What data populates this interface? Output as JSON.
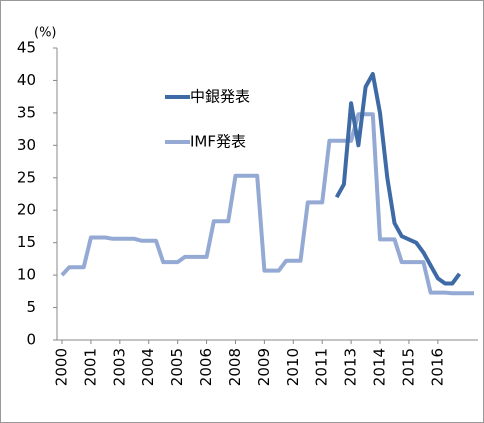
{
  "chart_data": {
    "type": "line",
    "unit_label": "(%)",
    "categories": [
      "2000",
      null,
      null,
      null,
      "2001",
      null,
      null,
      null,
      "2003",
      null,
      null,
      null,
      "2004",
      null,
      null,
      null,
      "2005",
      null,
      null,
      null,
      "2006",
      null,
      null,
      null,
      "2008",
      null,
      null,
      null,
      "2009",
      null,
      null,
      null,
      "2010",
      null,
      null,
      null,
      "2011",
      null,
      null,
      null,
      "2013",
      null,
      null,
      null,
      "2014",
      null,
      null,
      null,
      "2015",
      null,
      null,
      null,
      "2016",
      null,
      null,
      null,
      null,
      null
    ],
    "series": [
      {
        "name": "中銀発表",
        "color": "#3e6aa5",
        "values": [
          null,
          null,
          null,
          null,
          null,
          null,
          null,
          null,
          null,
          null,
          null,
          null,
          null,
          null,
          null,
          null,
          null,
          null,
          null,
          null,
          null,
          null,
          null,
          null,
          null,
          null,
          null,
          null,
          null,
          null,
          null,
          null,
          null,
          null,
          null,
          null,
          null,
          null,
          22,
          24,
          36.5,
          30,
          39,
          41,
          35,
          25,
          18,
          16,
          15.5,
          15,
          13.5,
          11.5,
          9.5,
          8.7,
          8.7,
          10.2,
          null,
          null
        ]
      },
      {
        "name": "IMF発表",
        "color": "#94a9d3",
        "values": [
          10,
          11.2,
          11.2,
          11.2,
          15.8,
          15.8,
          15.8,
          15.6,
          15.6,
          15.6,
          15.6,
          15.3,
          15.3,
          15.3,
          12,
          12,
          12,
          12.8,
          12.8,
          12.8,
          12.8,
          18.3,
          18.3,
          18.3,
          25.3,
          25.3,
          25.3,
          25.3,
          10.7,
          10.7,
          10.7,
          12.2,
          12.2,
          12.2,
          21.2,
          21.2,
          21.2,
          30.7,
          30.7,
          30.7,
          30.7,
          34.8,
          34.8,
          34.8,
          15.5,
          15.5,
          15.5,
          12,
          12,
          12,
          12,
          7.3,
          7.3,
          7.3,
          7.2,
          7.2,
          7.2,
          7.2
        ]
      }
    ],
    "ylim": [
      0,
      45
    ],
    "yticks": [
      0,
      5,
      10,
      15,
      20,
      25,
      30,
      35,
      40,
      45
    ]
  }
}
